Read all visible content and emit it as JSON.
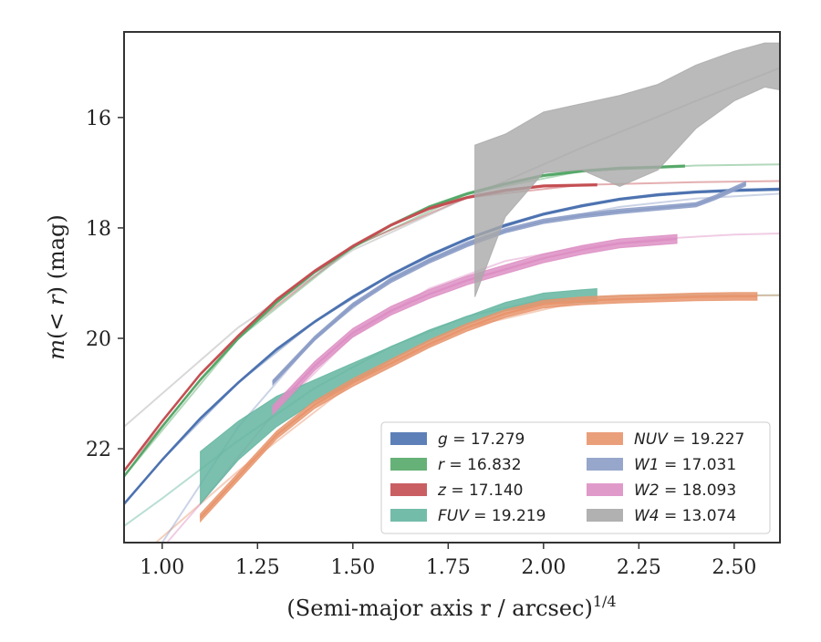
{
  "chart_data": {
    "type": "line",
    "title": "",
    "xlabel": "(Semi-major axis r / arcsec)",
    "xlabel_exponent": "1/4",
    "ylabel": "m(<r) (mag)",
    "xlim": [
      0.9,
      2.62
    ],
    "ylim": [
      23.7,
      14.45
    ],
    "y_inverted": true,
    "grid": false,
    "legend_position": "lower-right",
    "legend_columns": 2,
    "x_ticks": [
      "1.00",
      "1.25",
      "1.50",
      "1.75",
      "2.00",
      "2.25",
      "2.50"
    ],
    "x_tick_values": [
      1.0,
      1.25,
      1.5,
      1.75,
      2.0,
      2.25,
      2.5
    ],
    "y_ticks": [
      "16",
      "18",
      "20",
      "22"
    ],
    "y_tick_values": [
      16,
      18,
      20,
      22
    ],
    "series": [
      {
        "name": "g",
        "legend_label": "g = 17.279",
        "color": "#4c72b0",
        "band_halfwidth": 0.02,
        "data_x": [
          0.9,
          1.0,
          1.1,
          1.2,
          1.3,
          1.4,
          1.5,
          1.6,
          1.7,
          1.8,
          1.9,
          2.0,
          2.1,
          2.2,
          2.3,
          2.4,
          2.5,
          2.62
        ],
        "data_y": [
          23.0,
          22.2,
          21.45,
          20.8,
          20.2,
          19.7,
          19.25,
          18.85,
          18.5,
          18.2,
          17.95,
          17.75,
          17.6,
          17.48,
          17.4,
          17.35,
          17.32,
          17.3
        ],
        "model_x": [
          0.9,
          1.0,
          1.2,
          1.4,
          1.6,
          1.8,
          2.0,
          2.2,
          2.4,
          2.62
        ],
        "model_y": [
          23.0,
          22.2,
          20.8,
          19.7,
          18.85,
          18.2,
          17.75,
          17.48,
          17.35,
          17.3
        ]
      },
      {
        "name": "r",
        "legend_label": "r = 16.832",
        "color": "#55a868",
        "band_halfwidth": 0.02,
        "data_x": [
          0.9,
          1.0,
          1.1,
          1.2,
          1.3,
          1.4,
          1.5,
          1.6,
          1.7,
          1.8,
          1.9,
          2.0,
          2.1,
          2.2,
          2.3,
          2.37
        ],
        "data_y": [
          22.5,
          21.6,
          20.75,
          20.0,
          19.35,
          18.8,
          18.35,
          17.95,
          17.62,
          17.38,
          17.2,
          17.05,
          16.97,
          16.92,
          16.9,
          16.88
        ],
        "model_x": [
          0.9,
          1.2,
          1.5,
          1.8,
          2.1,
          2.4,
          2.62
        ],
        "model_y": [
          22.5,
          20.0,
          18.35,
          17.38,
          16.97,
          16.87,
          16.85
        ]
      },
      {
        "name": "z",
        "legend_label": "z = 17.140",
        "color": "#c44e52",
        "band_halfwidth": 0.02,
        "data_x": [
          0.9,
          1.0,
          1.1,
          1.2,
          1.3,
          1.4,
          1.5,
          1.6,
          1.7,
          1.8,
          1.9,
          2.0,
          2.14
        ],
        "data_y": [
          22.4,
          21.5,
          20.65,
          19.95,
          19.3,
          18.78,
          18.33,
          17.95,
          17.65,
          17.45,
          17.32,
          17.24,
          17.22
        ],
        "model_x": [
          0.9,
          1.2,
          1.5,
          1.8,
          2.1,
          2.4,
          2.62
        ],
        "model_y": [
          22.4,
          19.95,
          18.33,
          17.45,
          17.22,
          17.17,
          17.15
        ]
      },
      {
        "name": "FUV",
        "legend_label": "FUV = 19.219",
        "color": "#64b5a0",
        "band_halfwidth": 0.0,
        "band_x": [
          1.1,
          1.2,
          1.3,
          1.4,
          1.5,
          1.6,
          1.7,
          1.8,
          1.9,
          2.0,
          2.1,
          2.14
        ],
        "band_upper": [
          22.05,
          21.5,
          21.05,
          20.75,
          20.45,
          20.15,
          19.85,
          19.6,
          19.35,
          19.18,
          19.12,
          19.1
        ],
        "band_lower": [
          23.0,
          22.2,
          21.6,
          21.15,
          20.8,
          20.4,
          20.05,
          19.75,
          19.5,
          19.38,
          19.35,
          19.34
        ],
        "model_x": [
          0.9,
          1.0,
          1.2,
          1.4,
          1.6,
          1.8,
          2.0,
          2.2,
          2.4,
          2.62
        ],
        "model_y": [
          23.4,
          22.9,
          21.85,
          20.9,
          20.15,
          19.6,
          19.3,
          19.23,
          19.22,
          19.22
        ]
      },
      {
        "name": "NUV",
        "legend_label": "NUV = 19.227",
        "color": "#e8956d",
        "band_halfwidth": 0.07,
        "data_x": [
          1.1,
          1.2,
          1.3,
          1.4,
          1.5,
          1.6,
          1.7,
          1.8,
          1.9,
          2.0,
          2.1,
          2.2,
          2.3,
          2.4,
          2.5,
          2.56
        ],
        "data_y": [
          23.25,
          22.5,
          21.75,
          21.2,
          20.8,
          20.45,
          20.1,
          19.8,
          19.55,
          19.38,
          19.32,
          19.29,
          19.27,
          19.25,
          19.24,
          19.24
        ],
        "model_x": [
          0.9,
          1.2,
          1.5,
          1.8,
          2.1,
          2.4,
          2.62
        ],
        "model_y": [
          24.2,
          22.4,
          20.8,
          19.8,
          19.32,
          19.24,
          19.22
        ]
      },
      {
        "name": "W1",
        "legend_label": "W1 = 17.031",
        "color": "#8c9dc7",
        "band_halfwidth": 0.04,
        "data_x": [
          1.29,
          1.4,
          1.5,
          1.6,
          1.7,
          1.8,
          1.9,
          2.0,
          2.1,
          2.2,
          2.3,
          2.4,
          2.45,
          2.53
        ],
        "data_y": [
          20.8,
          20.0,
          19.4,
          18.95,
          18.6,
          18.3,
          18.05,
          17.88,
          17.78,
          17.7,
          17.64,
          17.58,
          17.45,
          17.2
        ],
        "model_x": [
          1.0,
          1.2,
          1.4,
          1.6,
          1.8,
          2.0,
          2.2,
          2.4,
          2.62
        ],
        "model_y": [
          23.7,
          21.6,
          20.0,
          18.9,
          18.25,
          17.88,
          17.62,
          17.47,
          17.38
        ]
      },
      {
        "name": "W2",
        "legend_label": "W2 = 18.093",
        "color": "#dd8fc4",
        "band_halfwidth": 0.08,
        "data_x": [
          1.29,
          1.4,
          1.5,
          1.6,
          1.7,
          1.8,
          1.9,
          2.0,
          2.1,
          2.2,
          2.35
        ],
        "data_y": [
          21.3,
          20.5,
          19.9,
          19.5,
          19.2,
          18.95,
          18.75,
          18.55,
          18.4,
          18.28,
          18.2
        ],
        "model_x": [
          0.9,
          1.1,
          1.3,
          1.5,
          1.7,
          1.9,
          2.1,
          2.3,
          2.5,
          2.62
        ],
        "model_y": [
          24.6,
          23.0,
          21.3,
          19.95,
          19.1,
          18.6,
          18.35,
          18.2,
          18.12,
          18.1
        ]
      },
      {
        "name": "W4",
        "legend_label": "W4 = 13.074",
        "color": "#a9a9a9",
        "band_x": [
          1.82,
          1.9,
          2.0,
          2.1,
          2.2,
          2.3,
          2.4,
          2.5,
          2.58,
          2.62
        ],
        "band_upper": [
          16.5,
          16.3,
          15.9,
          15.75,
          15.6,
          15.4,
          15.05,
          14.8,
          14.65,
          14.65
        ],
        "band_lower": [
          19.25,
          17.8,
          17.0,
          16.95,
          17.25,
          16.95,
          16.2,
          15.7,
          15.45,
          15.5
        ],
        "model_x": [
          0.9,
          1.2,
          1.5,
          1.8,
          2.1,
          2.4,
          2.62
        ],
        "model_y": [
          21.6,
          19.8,
          18.4,
          17.45,
          16.55,
          15.7,
          15.1
        ]
      }
    ]
  }
}
